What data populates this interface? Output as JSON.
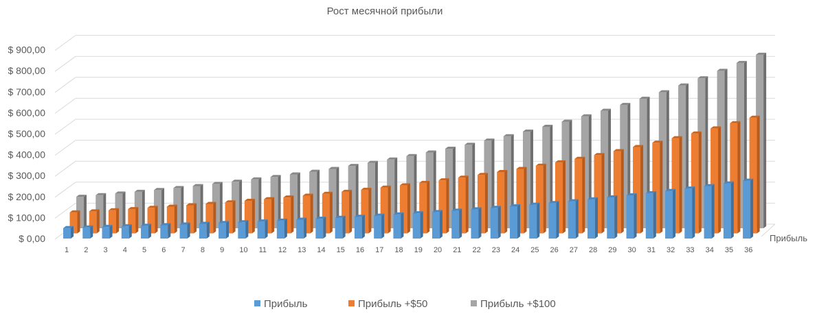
{
  "chart_data": {
    "type": "bar",
    "variant": "3d-column",
    "title": "Рост месячной прибыли",
    "xlabel": "",
    "ylabel": "",
    "depth_axis_label": "Прибыль",
    "ylim": [
      0,
      900
    ],
    "y_ticks": [
      "$ 0,00",
      "$ 100,00",
      "$ 200,00",
      "$ 300,00",
      "$ 400,00",
      "$ 500,00",
      "$ 600,00",
      "$ 700,00",
      "$ 800,00",
      "$ 900,00"
    ],
    "categories": [
      "1",
      "2",
      "3",
      "4",
      "5",
      "6",
      "7",
      "8",
      "9",
      "10",
      "11",
      "12",
      "13",
      "14",
      "15",
      "16",
      "17",
      "18",
      "19",
      "20",
      "21",
      "22",
      "23",
      "24",
      "25",
      "26",
      "27",
      "28",
      "29",
      "30",
      "31",
      "32",
      "33",
      "34",
      "35",
      "36"
    ],
    "grid": true,
    "legend_position": "bottom",
    "series": [
      {
        "name": "Прибыль",
        "color": "#5b9bd5",
        "side": "#41719c",
        "top": "#4a86c0",
        "values": [
          50,
          52.5,
          55.13,
          57.88,
          60.78,
          63.81,
          67.0,
          70.36,
          73.87,
          77.57,
          81.44,
          85.52,
          89.79,
          94.28,
          99.0,
          103.95,
          109.14,
          114.6,
          120.33,
          126.35,
          132.66,
          139.3,
          146.26,
          153.58,
          161.26,
          169.32,
          177.78,
          186.67,
          196.01,
          205.81,
          216.1,
          226.9,
          238.25,
          250.16,
          262.67,
          275.8
        ]
      },
      {
        "name": "Прибыль +$50",
        "color": "#ed7d31",
        "side": "#b65b1d",
        "top": "#c9651f",
        "values": [
          100,
          105,
          110.25,
          115.76,
          121.55,
          127.63,
          134.01,
          140.71,
          147.75,
          155.13,
          162.89,
          171.03,
          179.59,
          188.56,
          197.99,
          207.89,
          218.29,
          229.2,
          240.66,
          252.7,
          265.33,
          278.6,
          292.53,
          307.15,
          322.51,
          338.64,
          355.57,
          373.35,
          392.01,
          411.61,
          432.19,
          453.8,
          476.49,
          500.32,
          525.33,
          551.6
        ]
      },
      {
        "name": "Прибыль +$100",
        "color": "#a5a5a5",
        "side": "#6f6f6f",
        "top": "#888888",
        "values": [
          150,
          157.5,
          165.38,
          173.64,
          182.33,
          191.44,
          201.01,
          211.07,
          221.62,
          232.7,
          244.33,
          256.55,
          269.38,
          282.85,
          296.99,
          311.84,
          327.43,
          343.8,
          360.99,
          379.04,
          397.99,
          417.89,
          438.79,
          460.73,
          483.77,
          507.95,
          533.35,
          560.02,
          588.02,
          617.42,
          648.29,
          680.71,
          714.74,
          750.48,
          788.0,
          827.4
        ]
      }
    ]
  }
}
